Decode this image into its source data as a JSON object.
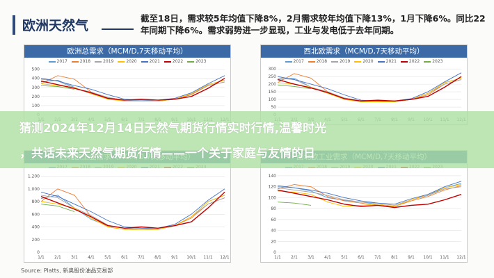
{
  "header": {
    "title": "欧洲天然气",
    "note": "截至18日，需求较5年均值下降8%，2月需求较年均值下降13%，1月下降6%。同比22年同期下降6%。需求弱势进一步显现，工业与发电低于去年同期。"
  },
  "banner": {
    "line1": "猜测2024年12月14日天然气期货行情实时行情,温馨时光",
    "line2": "，共话未来天然气期货行情——一个关于家庭与友情的日"
  },
  "source": "Source: Platts, 新奥股份油品交易部",
  "colors": {
    "2017": "#5b9bd5",
    "2018": "#ed7d31",
    "2019": "#a5a5a5",
    "2020": "#ffc000",
    "2021": "#4472c4",
    "2022": "#c00000",
    "2023": "#70ad47"
  },
  "chart_data": [
    {
      "type": "line",
      "title": "欧洲总需求（MCM/D,7天移动平均）",
      "x_ticks": [
        "1/1",
        "2/1",
        "3/1",
        "4/1",
        "5/1",
        "6/1",
        "7/1",
        "8/1",
        "9/1",
        "10/1",
        "11/1",
        "12/1"
      ],
      "y_ticks": [
        "0",
        "100",
        "200",
        "300",
        "400",
        "500"
      ],
      "ylim": [
        0,
        520
      ],
      "series": [
        {
          "name": "2017",
          "values": [
            360,
            380,
            300,
            230,
            190,
            160,
            150,
            150,
            170,
            230,
            330,
            380
          ]
        },
        {
          "name": "2018",
          "values": [
            340,
            430,
            390,
            250,
            180,
            150,
            150,
            150,
            170,
            220,
            320,
            360
          ]
        },
        {
          "name": "2019",
          "values": [
            390,
            370,
            290,
            250,
            190,
            160,
            160,
            150,
            170,
            230,
            320,
            360
          ]
        },
        {
          "name": "2020",
          "values": [
            340,
            320,
            300,
            230,
            170,
            150,
            150,
            150,
            170,
            230,
            330,
            380
          ]
        },
        {
          "name": "2021",
          "values": [
            400,
            370,
            320,
            280,
            220,
            170,
            160,
            160,
            180,
            240,
            340,
            430
          ]
        },
        {
          "name": "2022",
          "values": [
            370,
            330,
            290,
            240,
            180,
            160,
            170,
            160,
            170,
            200,
            290,
            400
          ]
        },
        {
          "name": "2023",
          "values": [
            320,
            310,
            280
          ]
        }
      ]
    },
    {
      "type": "line",
      "title": "西北欧需求（MCM/D,7天移动平均）",
      "x_ticks": [
        "1/1",
        "2/1",
        "3/1",
        "4/1",
        "5/1",
        "6/1",
        "7/1",
        "8/1",
        "9/1",
        "10/1",
        "11/1",
        "12/1"
      ],
      "y_ticks": [
        "0",
        "50",
        "100",
        "150",
        "200",
        "250",
        "300"
      ],
      "ylim": [
        0,
        310
      ],
      "series": [
        {
          "name": "2017",
          "values": [
            230,
            240,
            180,
            140,
            110,
            90,
            85,
            85,
            100,
            140,
            210,
            240
          ]
        },
        {
          "name": "2018",
          "values": [
            210,
            270,
            240,
            150,
            100,
            85,
            85,
            85,
            100,
            130,
            200,
            230
          ]
        },
        {
          "name": "2019",
          "values": [
            240,
            230,
            180,
            150,
            110,
            90,
            90,
            85,
            100,
            140,
            200,
            230
          ]
        },
        {
          "name": "2020",
          "values": [
            210,
            200,
            180,
            140,
            100,
            85,
            85,
            85,
            100,
            140,
            210,
            240
          ]
        },
        {
          "name": "2021",
          "values": [
            250,
            230,
            200,
            170,
            130,
            95,
            90,
            90,
            105,
            150,
            215,
            275
          ]
        },
        {
          "name": "2022",
          "values": [
            230,
            200,
            175,
            145,
            105,
            90,
            95,
            90,
            100,
            120,
            180,
            250
          ]
        },
        {
          "name": "2023",
          "values": [
            195,
            185,
            170
          ]
        }
      ]
    },
    {
      "type": "line",
      "title": "西北欧工业需求（MCM/D,7天移动平均）",
      "x_ticks": [
        "1/1",
        "2/1",
        "3/1",
        "4/1",
        "5/1",
        "6/1",
        "7/1",
        "8/1",
        "9/1",
        "10/1",
        "11/1",
        "12/1"
      ],
      "y_ticks": [
        "0",
        "200",
        "400",
        "600",
        "800",
        "1,000",
        "1,200"
      ],
      "ylim": [
        0,
        1250
      ],
      "series": [
        {
          "name": "2017",
          "values": [
            850,
            900,
            700,
            520,
            420,
            380,
            360,
            360,
            420,
            560,
            800,
            900
          ]
        },
        {
          "name": "2018",
          "values": [
            800,
            1000,
            900,
            560,
            400,
            360,
            360,
            360,
            420,
            540,
            760,
            860
          ]
        },
        {
          "name": "2019",
          "values": [
            900,
            860,
            700,
            580,
            430,
            380,
            380,
            360,
            420,
            560,
            760,
            860
          ]
        },
        {
          "name": "2020",
          "values": [
            800,
            760,
            700,
            540,
            400,
            360,
            360,
            360,
            420,
            560,
            800,
            900
          ]
        },
        {
          "name": "2021",
          "values": [
            950,
            880,
            760,
            640,
            500,
            400,
            380,
            380,
            440,
            600,
            820,
            1000
          ]
        },
        {
          "name": "2022",
          "values": [
            880,
            780,
            680,
            560,
            420,
            380,
            400,
            380,
            420,
            480,
            700,
            950
          ]
        },
        {
          "name": "2023",
          "values": [
            760,
            730,
            640
          ]
        }
      ]
    },
    {
      "type": "line",
      "title": "西北欧工业需求（MCM/D,7天移动平均）",
      "x_ticks": [
        "1/1",
        "2/1",
        "3/1",
        "4/1",
        "5/1",
        "6/1",
        "7/1",
        "8/1",
        "9/1",
        "10/1",
        "11/1",
        "12/1"
      ],
      "y_ticks": [
        "0",
        "20",
        "40",
        "60",
        "80",
        "100",
        "120",
        "140"
      ],
      "ylim": [
        0,
        145
      ],
      "series": [
        {
          "name": "2017",
          "values": [
            120,
            118,
            112,
            100,
            95,
            92,
            88,
            84,
            96,
            104,
            118,
            126
          ]
        },
        {
          "name": "2018",
          "values": [
            116,
            124,
            120,
            102,
            94,
            90,
            86,
            84,
            94,
            102,
            114,
            122
          ]
        },
        {
          "name": "2019",
          "values": [
            118,
            114,
            110,
            104,
            96,
            92,
            90,
            86,
            96,
            104,
            116,
            120
          ]
        },
        {
          "name": "2020",
          "values": [
            112,
            110,
            106,
            92,
            84,
            86,
            88,
            84,
            96,
            106,
            118,
            124
          ]
        },
        {
          "name": "2021",
          "values": [
            122,
            118,
            114,
            108,
            100,
            94,
            90,
            88,
            98,
            106,
            120,
            130
          ]
        },
        {
          "name": "2022",
          "values": [
            114,
            108,
            102,
            96,
            88,
            84,
            86,
            82,
            86,
            88,
            96,
            106
          ]
        },
        {
          "name": "2023",
          "values": [
            92,
            90,
            86
          ]
        }
      ]
    }
  ]
}
